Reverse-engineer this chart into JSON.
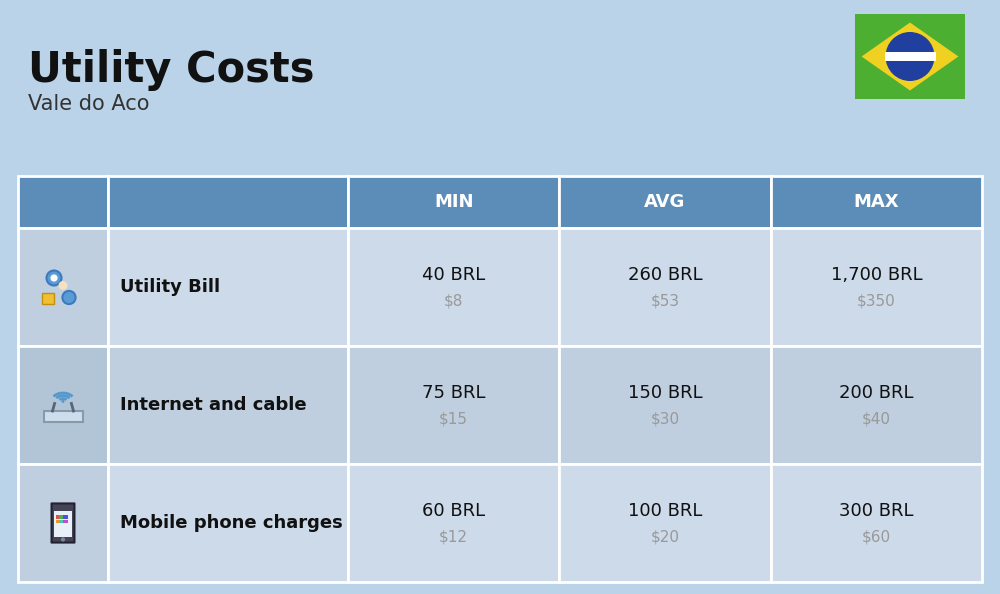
{
  "title": "Utility Costs",
  "subtitle": "Vale do Aco",
  "background_color": "#bad3e8",
  "header_color": "#5b8db8",
  "header_text_color": "#ffffff",
  "row_colors_alt": [
    "#ccdaea",
    "#bfcfdf"
  ],
  "icon_col_color_alt": [
    "#bfcfdf",
    "#b2c5d6"
  ],
  "columns_header": [
    "MIN",
    "AVG",
    "MAX"
  ],
  "rows": [
    {
      "icon": "utility",
      "label": "Utility Bill",
      "min_brl": "40 BRL",
      "min_usd": "$8",
      "avg_brl": "260 BRL",
      "avg_usd": "$53",
      "max_brl": "1,700 BRL",
      "max_usd": "$350"
    },
    {
      "icon": "internet",
      "label": "Internet and cable",
      "min_brl": "75 BRL",
      "min_usd": "$15",
      "avg_brl": "150 BRL",
      "avg_usd": "$30",
      "max_brl": "200 BRL",
      "max_usd": "$40"
    },
    {
      "icon": "mobile",
      "label": "Mobile phone charges",
      "min_brl": "60 BRL",
      "min_usd": "$12",
      "avg_brl": "100 BRL",
      "avg_usd": "$20",
      "max_brl": "300 BRL",
      "max_usd": "$60"
    }
  ],
  "flag_green": "#4caf32",
  "flag_yellow": "#f0d020",
  "flag_blue": "#213f9e",
  "title_fontsize": 30,
  "subtitle_fontsize": 15,
  "header_fontsize": 13,
  "label_fontsize": 13,
  "value_fontsize": 13,
  "usd_fontsize": 11,
  "usd_color": "#999999",
  "label_color": "#111111",
  "value_color": "#111111"
}
